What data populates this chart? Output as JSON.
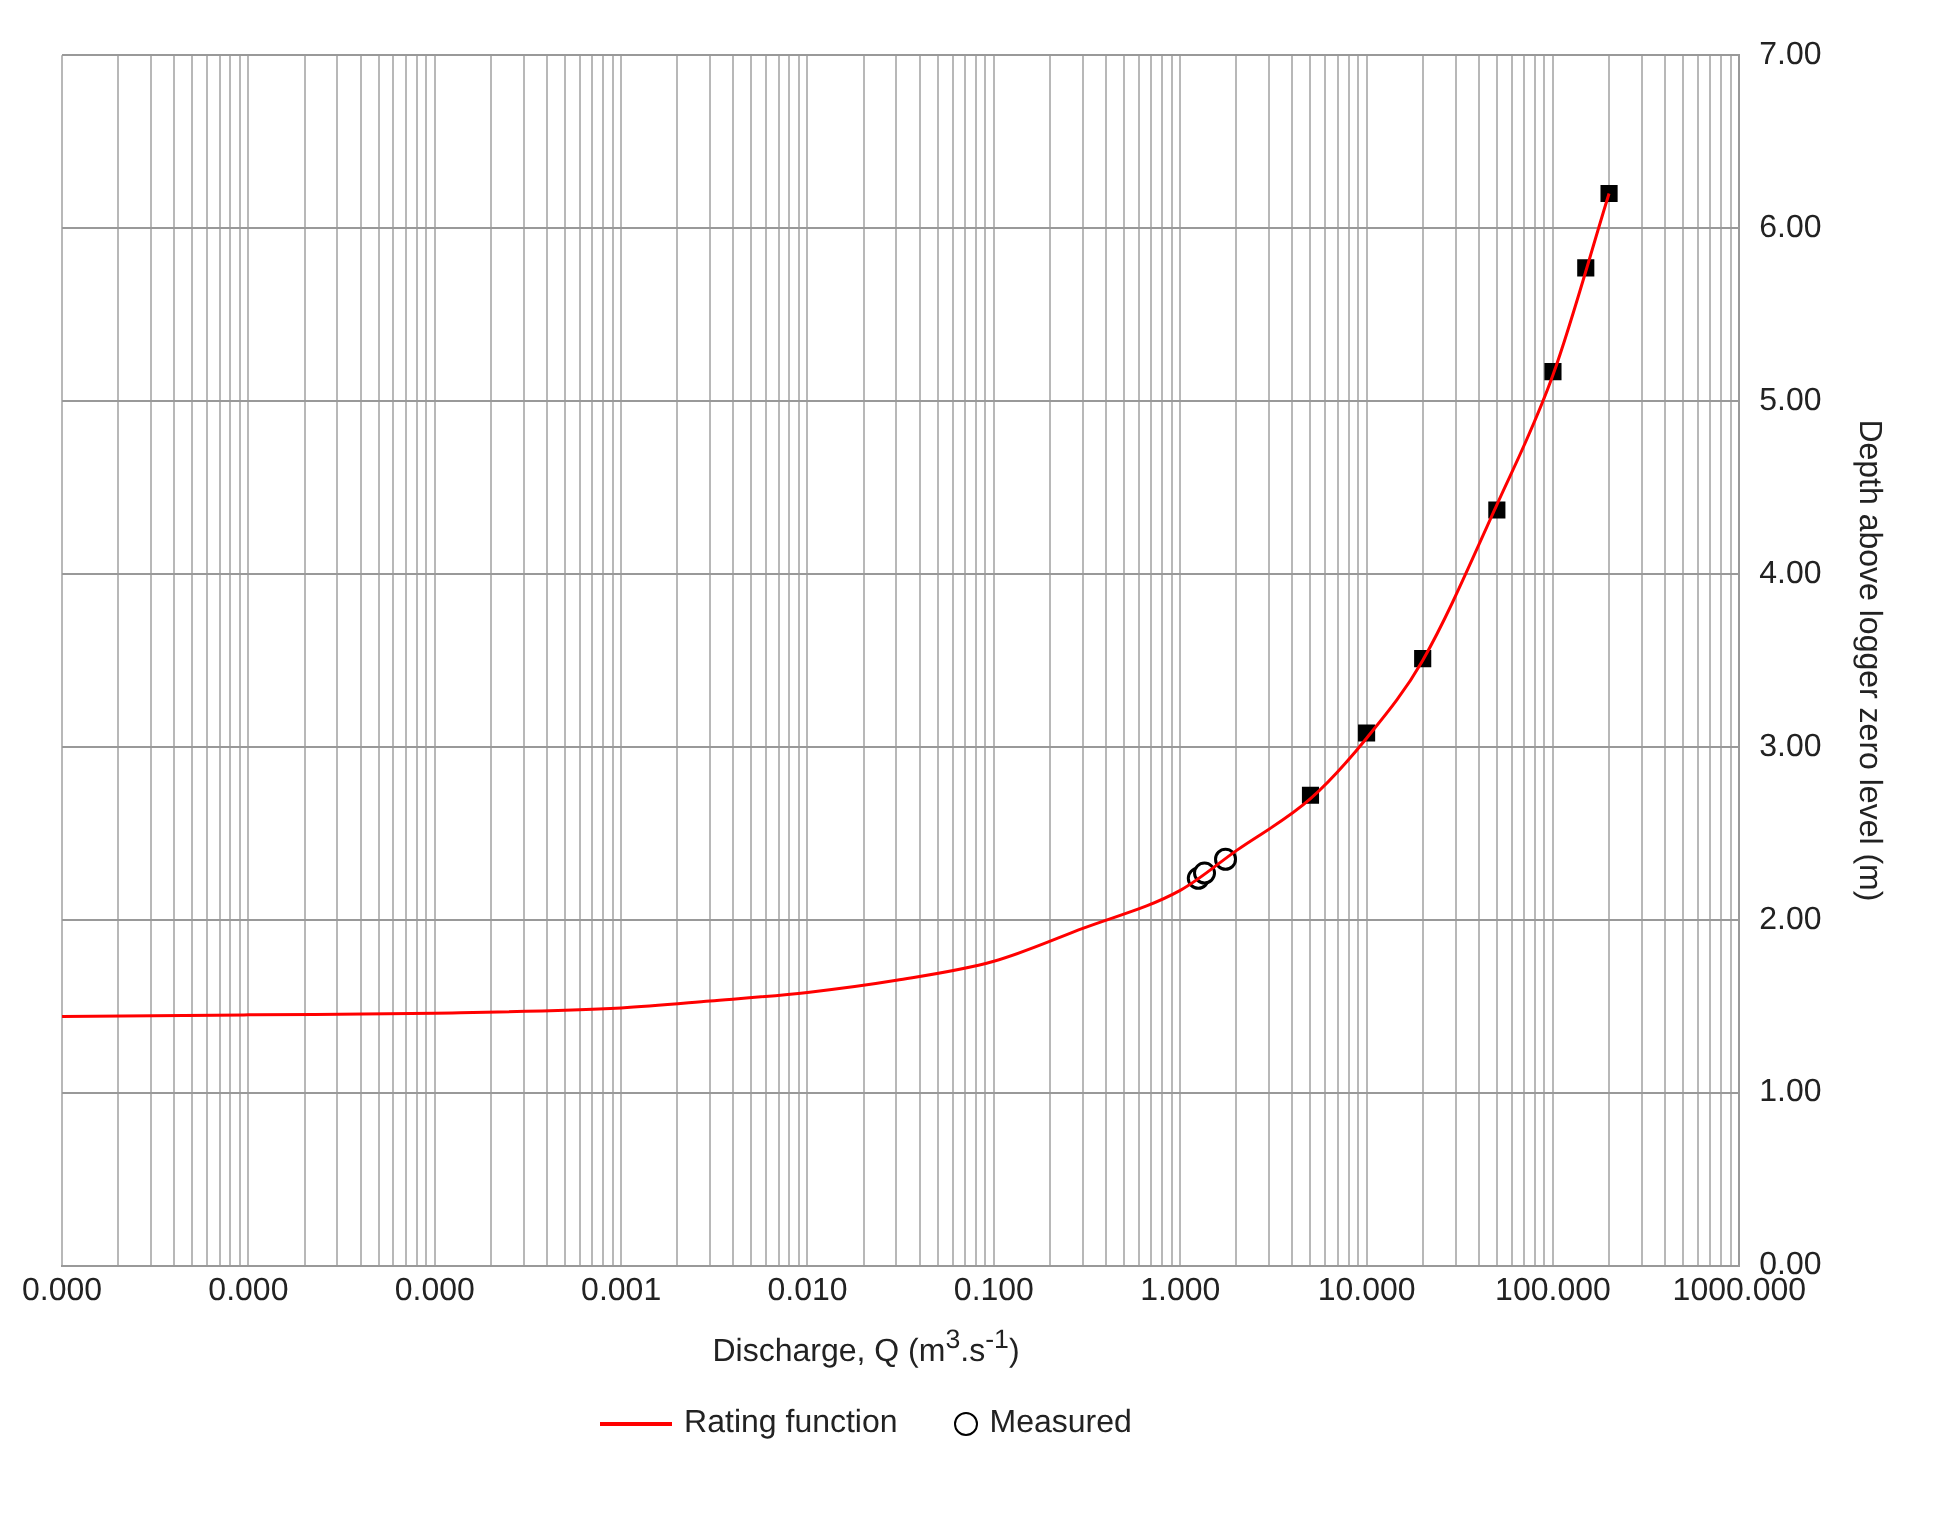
{
  "chart_data": {
    "type": "line",
    "xlabel": "Discharge, Q (m$^{3}$.s$^{-1}$)",
    "ylabel": "Depth above logger zero level (m)",
    "log": "x",
    "grid": true,
    "legend": "bottom",
    "xlim": [
      1e-06,
      1000
    ],
    "ylim": [
      0,
      7
    ],
    "xticks": [
      {
        "value": 1e-06,
        "label": "0.000"
      },
      {
        "value": 1e-05,
        "label": "0.000"
      },
      {
        "value": 0.0001,
        "label": "0.000"
      },
      {
        "value": 0.001,
        "label": "0.001"
      },
      {
        "value": 0.01,
        "label": "0.010"
      },
      {
        "value": 0.1,
        "label": "0.100"
      },
      {
        "value": 1,
        "label": "1.000"
      },
      {
        "value": 10,
        "label": "10.000"
      },
      {
        "value": 100,
        "label": "100.000"
      },
      {
        "value": 1000,
        "label": "1000.000"
      }
    ],
    "yticks": [
      {
        "value": 0,
        "label": "0.00"
      },
      {
        "value": 1,
        "label": "1.00"
      },
      {
        "value": 2,
        "label": "2.00"
      },
      {
        "value": 3,
        "label": "3.00"
      },
      {
        "value": 4,
        "label": "4.00"
      },
      {
        "value": 5,
        "label": "5.00"
      },
      {
        "value": 6,
        "label": "6.00"
      },
      {
        "value": 7,
        "label": "7.00"
      }
    ],
    "series": [
      {
        "name": "Rating function",
        "color": "#ff0000",
        "marker": "none",
        "x": [
          1e-06,
          1e-05,
          0.0001,
          0.001,
          0.003,
          0.01,
          0.03,
          0.1,
          0.3,
          1,
          2,
          5,
          10,
          20,
          50,
          100,
          200
        ],
        "values": [
          1.44,
          1.45,
          1.46,
          1.49,
          1.53,
          1.58,
          1.65,
          1.76,
          1.95,
          2.17,
          2.4,
          2.7,
          3.05,
          3.5,
          4.4,
          5.15,
          6.2
        ]
      },
      {
        "name": "Measured",
        "type": "scatter",
        "color": "#000000",
        "marker": "circle",
        "x": [
          1.25,
          1.35,
          1.75
        ],
        "values": [
          2.24,
          2.27,
          2.35
        ]
      },
      {
        "type": "scatter",
        "color": "#000000",
        "marker": "square",
        "x": [
          5,
          10,
          20,
          50,
          100,
          150,
          200
        ],
        "values": [
          2.72,
          3.08,
          3.51,
          4.37,
          5.17,
          5.77,
          6.2
        ]
      }
    ]
  }
}
